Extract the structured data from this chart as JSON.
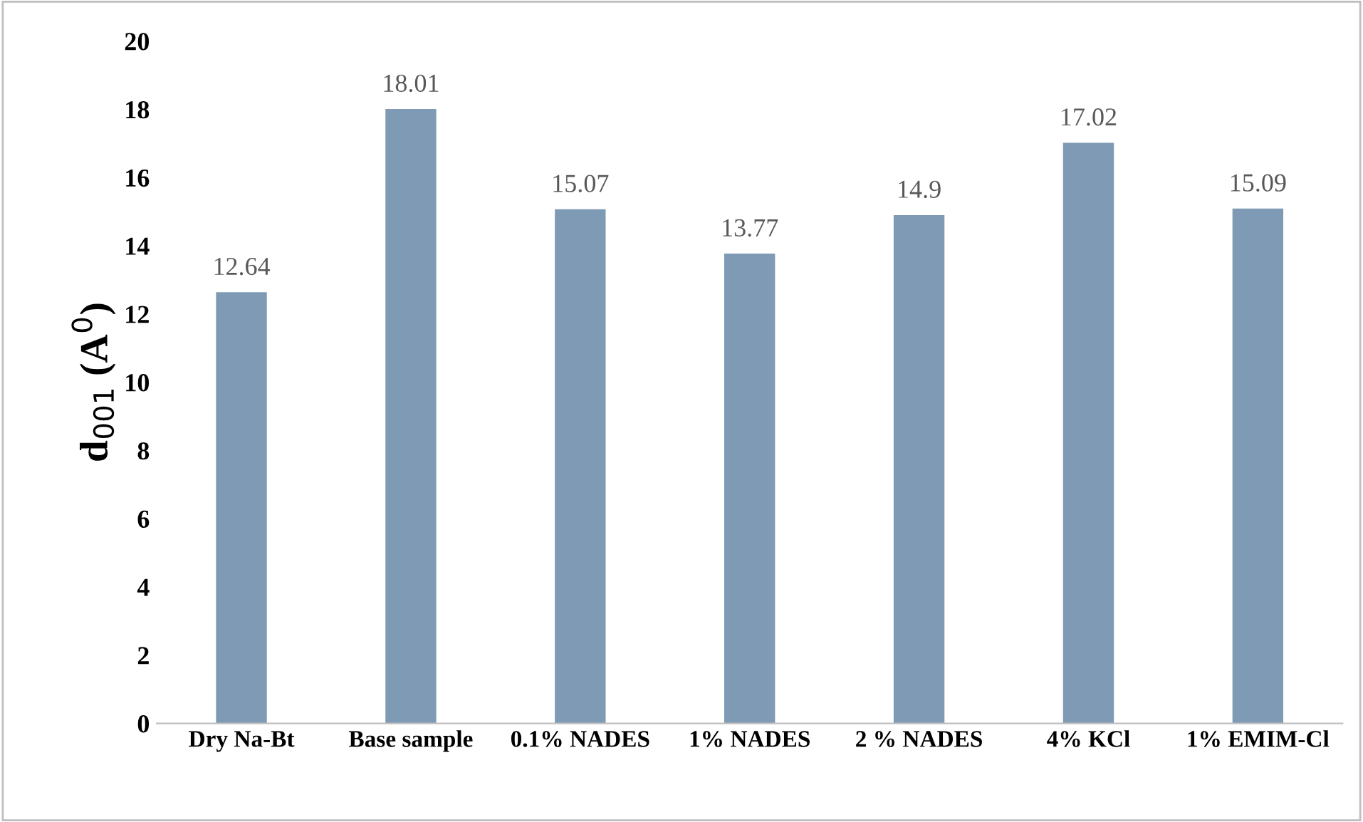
{
  "chart_data": {
    "type": "bar",
    "ylabel": "d$_{001}$ (A$^{0}$)",
    "categories": [
      "Dry Na-Bt",
      "Base sample",
      "0.1% NADES",
      "1% NADES",
      "2 % NADES",
      "4% KCl",
      "1% EMIM-Cl"
    ],
    "values": [
      12.64,
      18.01,
      15.07,
      13.77,
      14.9,
      17.02,
      15.09
    ],
    "color": "#7f9ab4",
    "ylim": [
      0,
      20
    ],
    "yticks": [
      0,
      2,
      4,
      6,
      8,
      10,
      12,
      14,
      16,
      18,
      20
    ],
    "data_labels": true,
    "grid": false
  }
}
